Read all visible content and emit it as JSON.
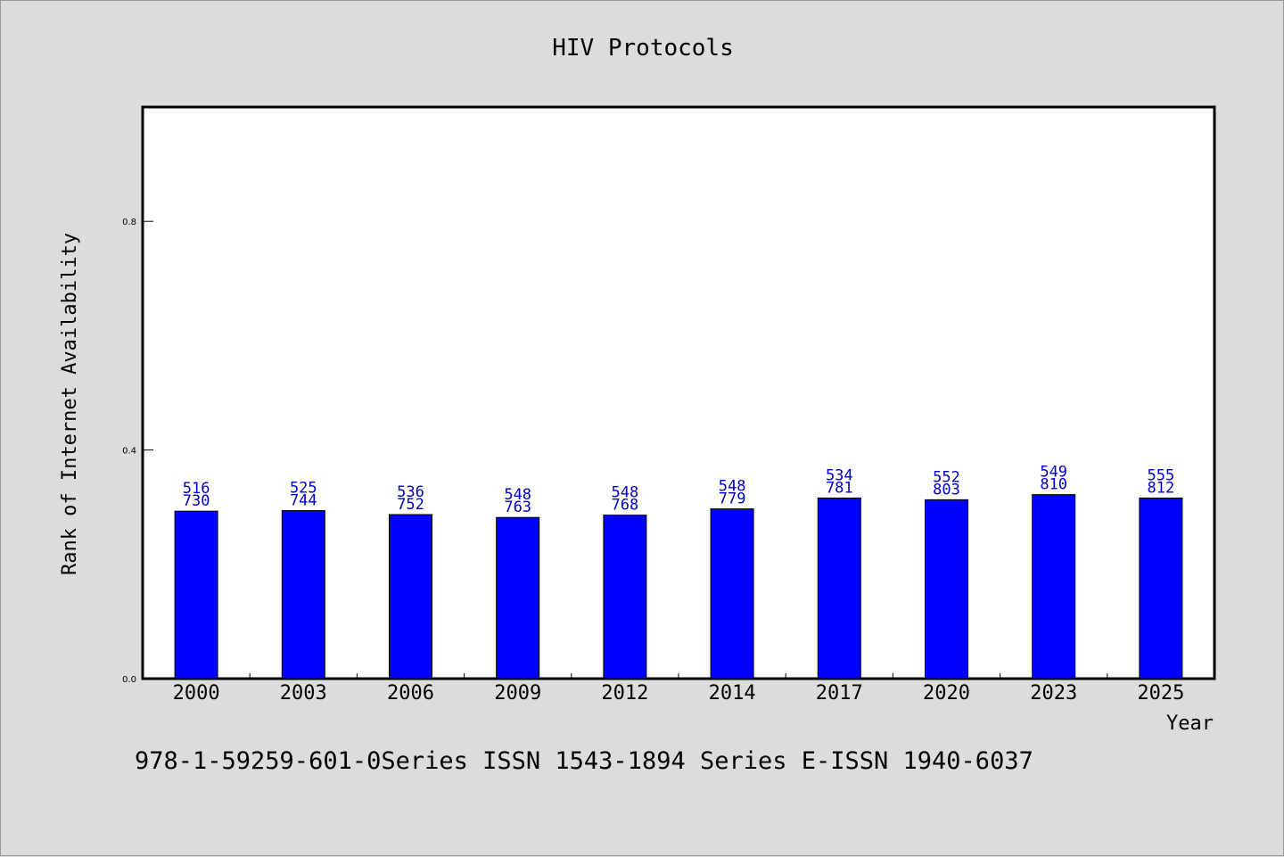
{
  "chart_data": {
    "type": "bar",
    "title": "HIV Protocols",
    "xlabel": "Year",
    "ylabel": "Rank of Internet Availability",
    "ylim": [
      0,
      1
    ],
    "yticks": [
      "0.0",
      "0.4",
      "0.8"
    ],
    "grid": false,
    "categories": [
      "2000",
      "2003",
      "2006",
      "2009",
      "2012",
      "2014",
      "2017",
      "2020",
      "2023",
      "2025"
    ],
    "values": [
      0.293,
      0.294,
      0.287,
      0.282,
      0.286,
      0.297,
      0.316,
      0.313,
      0.322,
      0.316
    ],
    "data_labels_top": [
      "516",
      "525",
      "536",
      "548",
      "548",
      "548",
      "534",
      "552",
      "549",
      "555"
    ],
    "data_labels_bottom": [
      "730",
      "744",
      "752",
      "763",
      "768",
      "779",
      "781",
      "803",
      "810",
      "812"
    ],
    "bar_color": "#0000ff",
    "label_color": "#0000cc"
  },
  "footer": {
    "text": "978-1-59259-601-0Series ISSN 1543-1894 Series E-ISSN 1940-6037"
  }
}
